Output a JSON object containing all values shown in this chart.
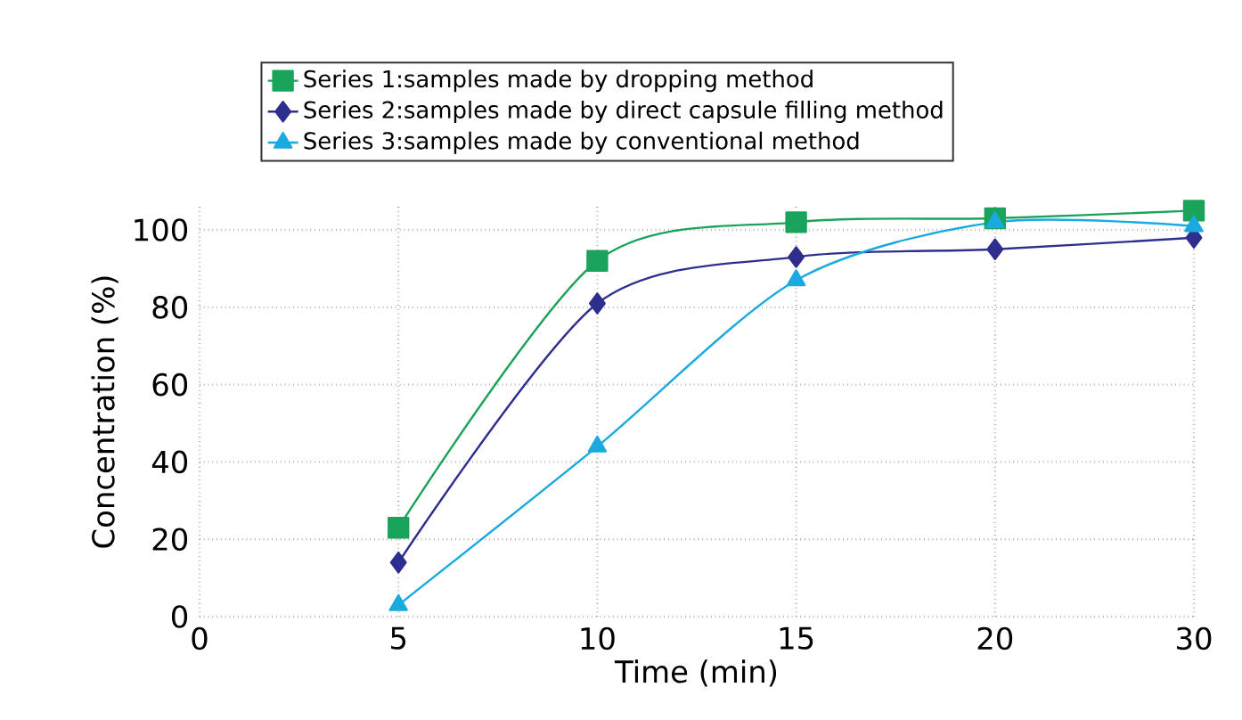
{
  "chart_data": {
    "type": "line",
    "xlabel": "Time (min)",
    "ylabel": "Concentration (%)",
    "categories": [
      "0",
      "5",
      "10",
      "15",
      "20",
      "30"
    ],
    "series": [
      {
        "name": "Series 1:samples made by dropping method",
        "color": "#1aa35a",
        "marker": "square",
        "values": [
          null,
          23,
          92,
          102,
          103,
          105
        ]
      },
      {
        "name": "Series 2:samples made by direct capsule filling method",
        "color": "#2e2e8f",
        "marker": "diamond",
        "values": [
          null,
          14,
          81,
          93,
          95,
          98
        ]
      },
      {
        "name": "Series 3:samples made by conventional method",
        "color": "#1aa9e0",
        "marker": "triangle",
        "values": [
          null,
          3,
          44,
          87,
          102,
          101
        ]
      }
    ],
    "ylim": [
      0,
      106
    ],
    "yticks": [
      0,
      20,
      40,
      60,
      80,
      100
    ],
    "grid": true,
    "legend": "top"
  }
}
